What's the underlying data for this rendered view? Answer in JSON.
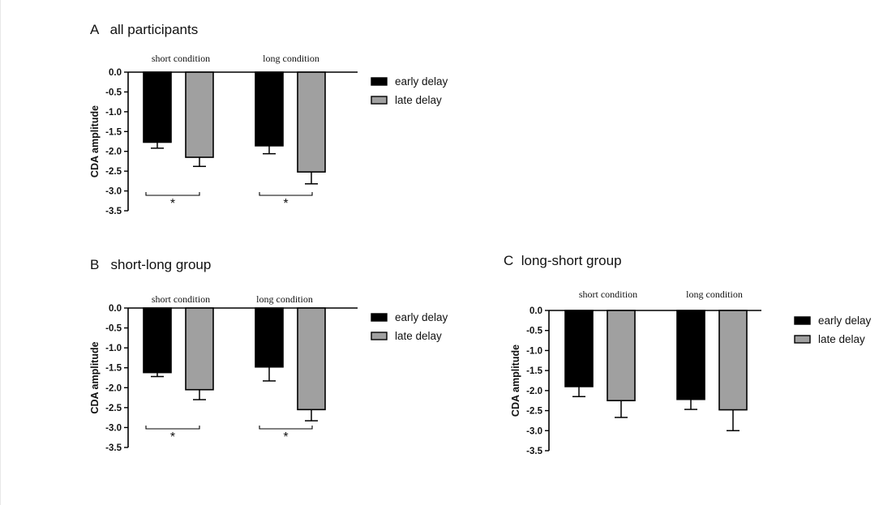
{
  "chart_data": [
    {
      "panel": "A",
      "title": "A   all participants",
      "type": "bar",
      "categories": [
        "short condition",
        "long condition"
      ],
      "series": [
        {
          "name": "early delay",
          "values": [
            -1.77,
            -1.86
          ],
          "errors": [
            0.15,
            0.2
          ]
        },
        {
          "name": "late delay",
          "values": [
            -2.15,
            -2.52
          ],
          "errors": [
            0.23,
            0.3
          ]
        }
      ],
      "ylabel": "CDA amplitude",
      "xlabel": "",
      "ylim": [
        -3.5,
        0
      ],
      "yticks": [
        "0.0",
        "-0.5",
        "-1.0",
        "-1.5",
        "-2.0",
        "-2.5",
        "-3.0",
        "-3.5"
      ],
      "significance": [
        "*",
        "*"
      ],
      "legend": "right",
      "grid": false
    },
    {
      "panel": "B",
      "title": "B   short-long group",
      "type": "bar",
      "categories": [
        "short condition",
        "long condition"
      ],
      "series": [
        {
          "name": "early delay",
          "values": [
            -1.62,
            -1.48
          ],
          "errors": [
            0.1,
            0.35
          ]
        },
        {
          "name": "late delay",
          "values": [
            -2.05,
            -2.55
          ],
          "errors": [
            0.25,
            0.28
          ]
        }
      ],
      "ylabel": "CDA amplitude",
      "xlabel": "",
      "ylim": [
        -3.5,
        0
      ],
      "yticks": [
        "0.0",
        "-0.5",
        "-1.0",
        "-1.5",
        "-2.0",
        "-2.5",
        "-3.0",
        "-3.5"
      ],
      "significance": [
        "*",
        "*"
      ],
      "legend": "right",
      "grid": false
    },
    {
      "panel": "C",
      "title": "C  long-short group",
      "type": "bar",
      "categories": [
        "short condition",
        "long condition"
      ],
      "series": [
        {
          "name": "early delay",
          "values": [
            -1.9,
            -2.22
          ],
          "errors": [
            0.25,
            0.25
          ]
        },
        {
          "name": "late delay",
          "values": [
            -2.25,
            -2.48
          ],
          "errors": [
            0.42,
            0.52
          ]
        }
      ],
      "ylabel": "CDA amplitude",
      "xlabel": "",
      "ylim": [
        -3.5,
        0
      ],
      "yticks": [
        "0.0",
        "-0.5",
        "-1.0",
        "-1.5",
        "-2.0",
        "-2.5",
        "-3.0",
        "-3.5"
      ],
      "significance": [],
      "legend": "right",
      "grid": false
    }
  ],
  "colors": {
    "early": "#000000",
    "late": "#a0a0a0",
    "axis": "#000000"
  }
}
